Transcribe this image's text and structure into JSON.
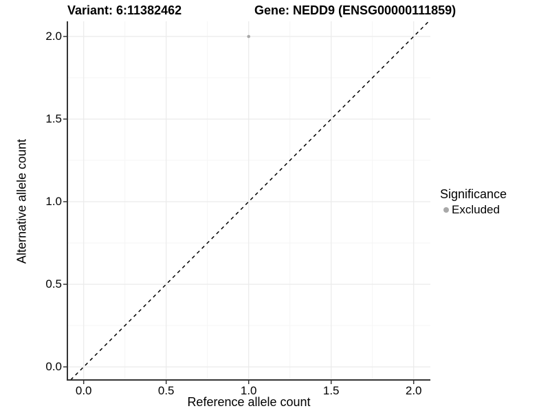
{
  "chart_data": {
    "type": "scatter",
    "title_left": "Variant: 6:11382462",
    "title_right": "Gene: NEDD9 (ENSG00000111859)",
    "xlabel": "Reference allele count",
    "ylabel": "Alternative allele count",
    "xlim": [
      -0.1,
      2.1
    ],
    "ylim": [
      -0.08,
      2.09
    ],
    "x_ticks": [
      0.0,
      0.5,
      1.0,
      1.5,
      2.0
    ],
    "y_ticks": [
      0.0,
      0.5,
      1.0,
      1.5,
      2.0
    ],
    "x_tick_labels": [
      "0.0",
      "0.5",
      "1.0",
      "1.5",
      "2.0"
    ],
    "y_tick_labels": [
      "0.0",
      "0.5",
      "1.0",
      "1.5",
      "2.0"
    ],
    "grid": "major and minor gridlines on, white panel background",
    "series": [
      {
        "name": "Excluded",
        "marker": "circle",
        "color": "#a8a8a8",
        "points": [
          {
            "x": 1.0,
            "y": 2.0
          }
        ]
      }
    ],
    "reference_line": {
      "type": "identity (y = x)",
      "style": "dashed",
      "color": "#000000"
    },
    "legend": {
      "title": "Significance",
      "position": "right",
      "items": [
        {
          "label": "Excluded",
          "marker": "circle",
          "color": "#a8a8a8"
        }
      ]
    },
    "colors": {
      "background": "#ffffff",
      "grid_major": "#ebebeb",
      "grid_minor": "#f5f5f5",
      "axis_line": "#333333",
      "tick_mark": "#333333",
      "text": "#000000",
      "point": "#a8a8a8",
      "identity_line": "#000000"
    }
  }
}
